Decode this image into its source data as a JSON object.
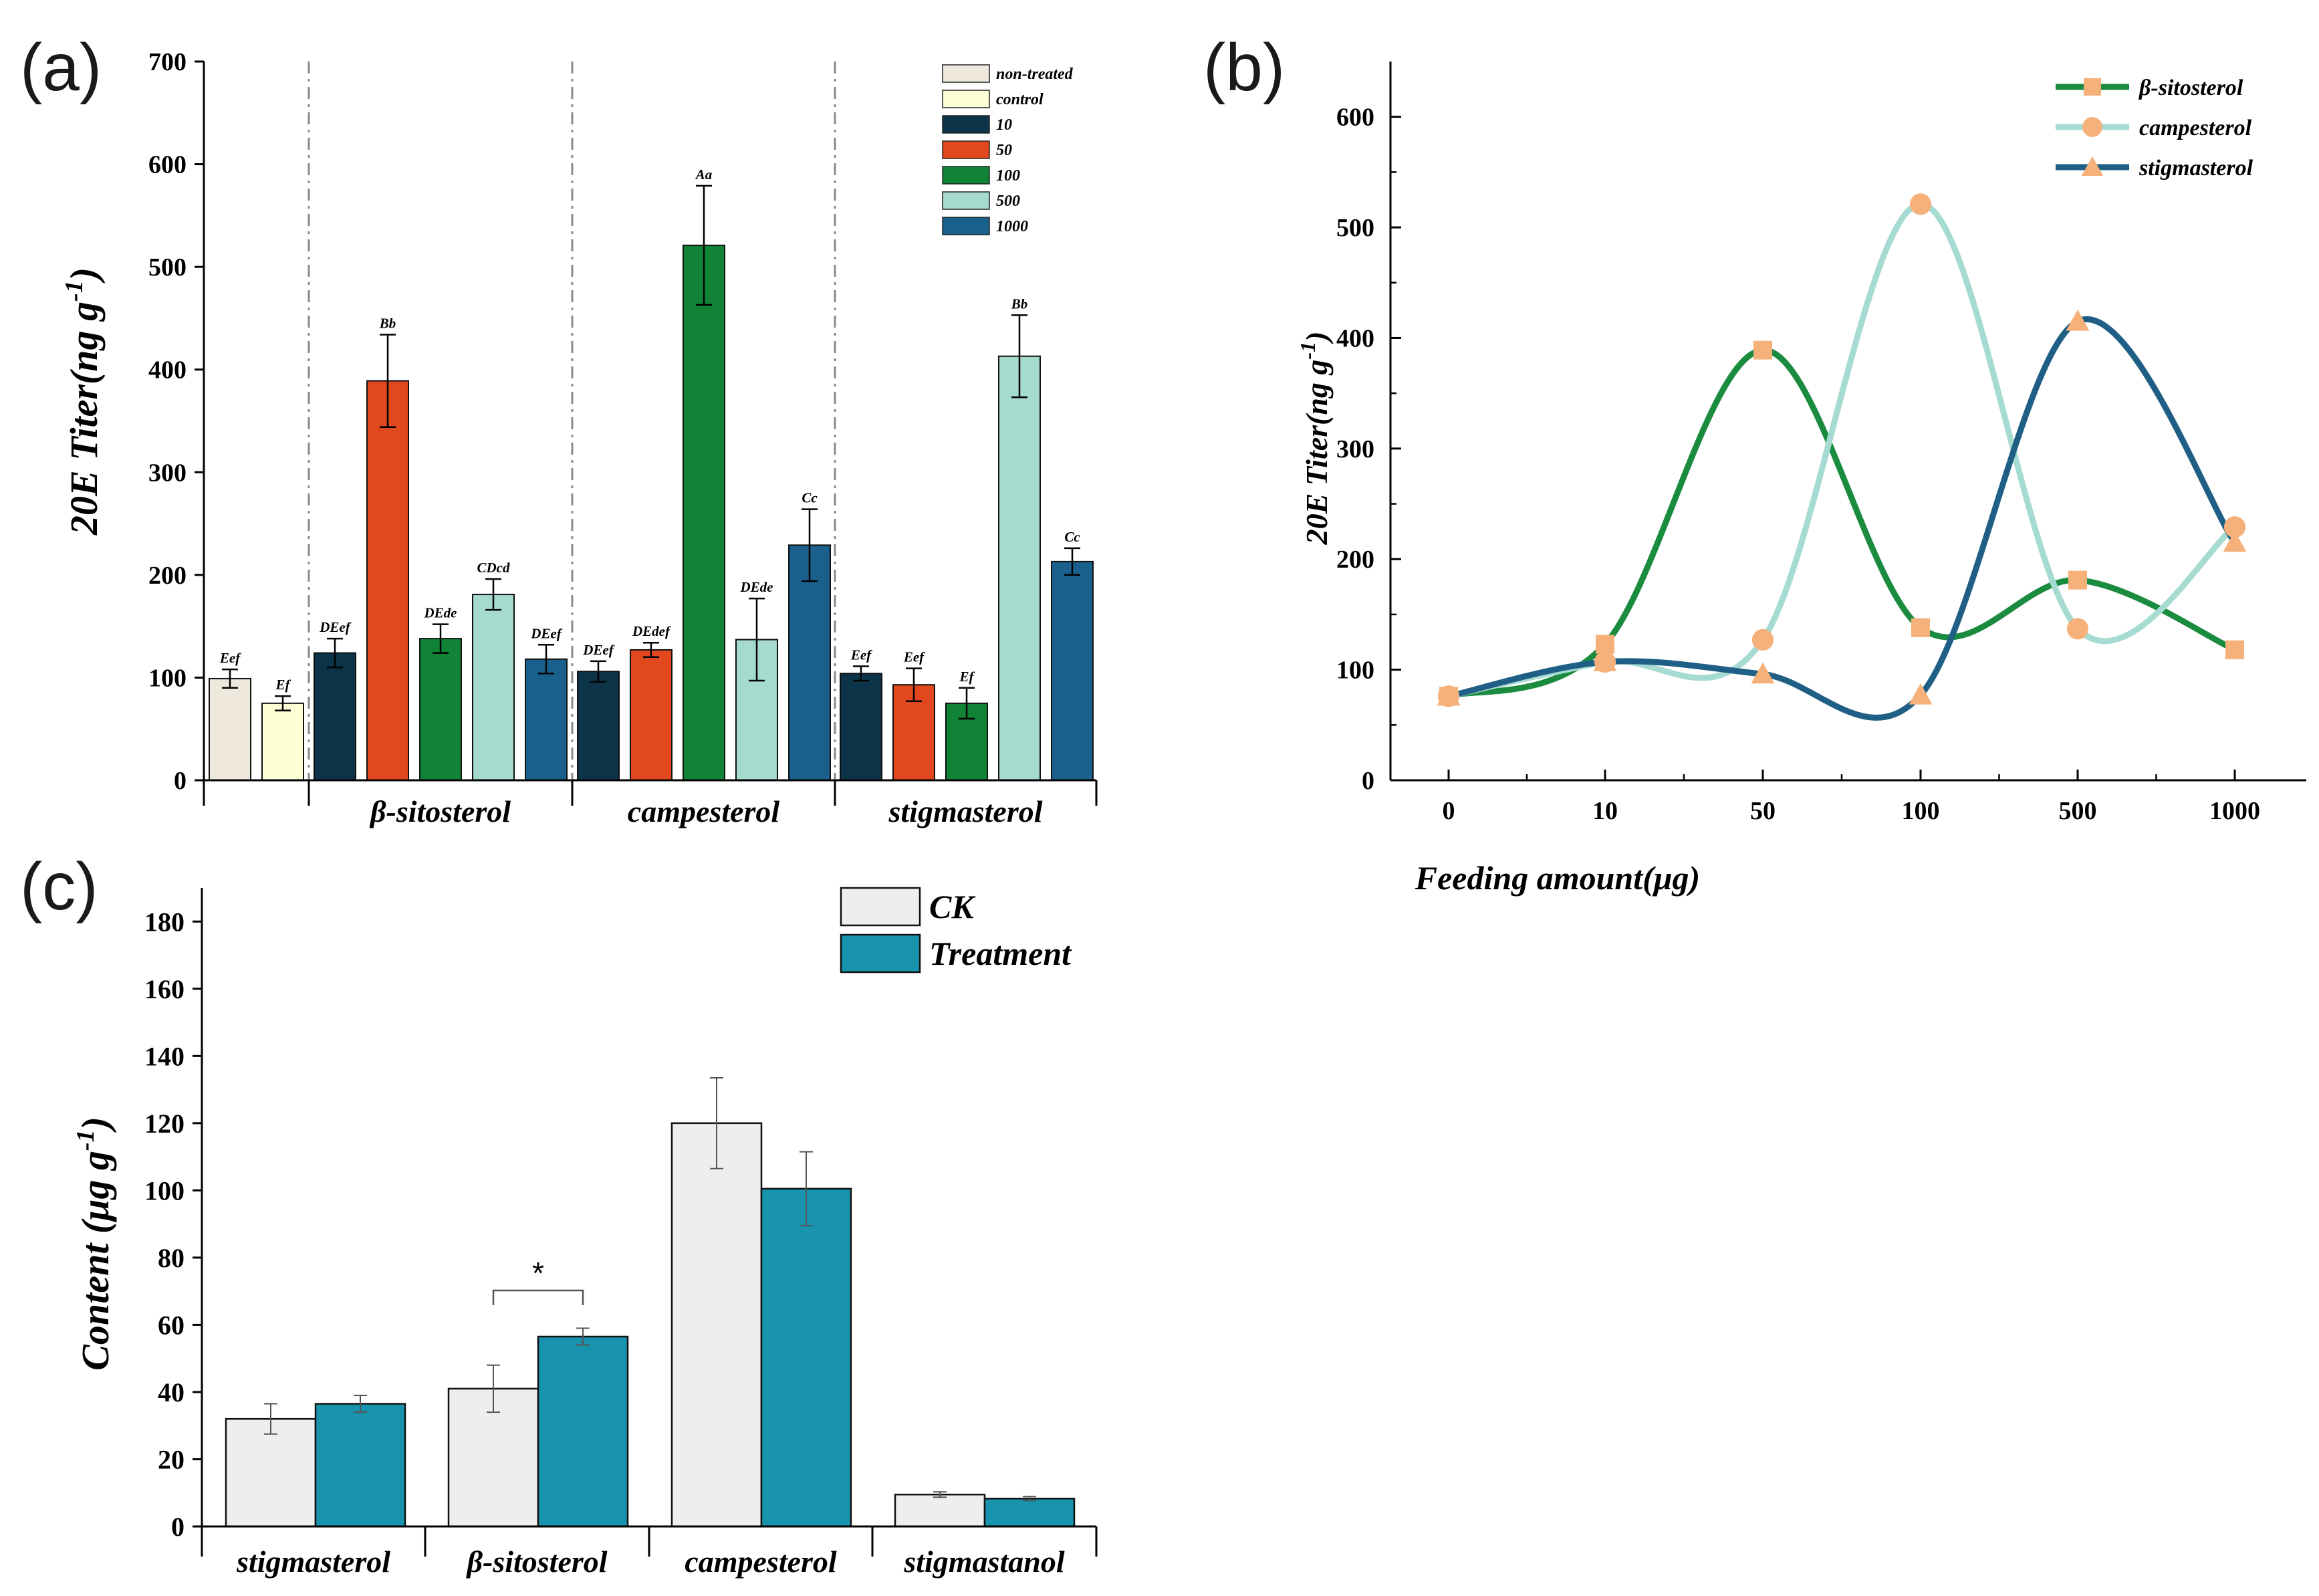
{
  "panels": {
    "a": "(a)",
    "b": "(b)",
    "c": "(c)"
  },
  "chart_data": [
    {
      "type": "bar",
      "id": "a",
      "ylabel": "20E Titer(ng g",
      "ylabel_sup": "-1",
      "ylabel_close": ")",
      "ylim": [
        0,
        700
      ],
      "yticks": [
        0,
        100,
        200,
        300,
        400,
        500,
        600,
        700
      ],
      "legend": [
        {
          "label": "non-treated",
          "color": "#efe8dc"
        },
        {
          "label": "control",
          "color": "#fdfdd6"
        },
        {
          "label": "10",
          "color": "#0c3449"
        },
        {
          "label": "50",
          "color": "#e2481d"
        },
        {
          "label": "100",
          "color": "#118337"
        },
        {
          "label": "500",
          "color": "#a5dacf"
        },
        {
          "label": "1000",
          "color": "#19608c"
        }
      ],
      "groups": [
        {
          "label": "",
          "bars": [
            {
              "series": "non-treated",
              "value": 99,
              "err": 9,
              "sig": "Eef"
            },
            {
              "series": "control",
              "value": 75,
              "err": 7,
              "sig": "Ef"
            }
          ]
        },
        {
          "label": "β-sitosterol",
          "bars": [
            {
              "series": "10",
              "value": 124,
              "err": 14,
              "sig": "DEef"
            },
            {
              "series": "50",
              "value": 389,
              "err": 45,
              "sig": "Bb"
            },
            {
              "series": "100",
              "value": 138,
              "err": 14,
              "sig": "DEde"
            },
            {
              "series": "500",
              "value": 181,
              "err": 15,
              "sig": "CDcd"
            },
            {
              "series": "1000",
              "value": 118,
              "err": 14,
              "sig": "DEef"
            }
          ]
        },
        {
          "label": "campesterol",
          "bars": [
            {
              "series": "10",
              "value": 106,
              "err": 10,
              "sig": "DEef"
            },
            {
              "series": "50",
              "value": 127,
              "err": 7,
              "sig": "DEdef"
            },
            {
              "series": "100",
              "value": 521,
              "err": 58,
              "sig": "Aa"
            },
            {
              "series": "500",
              "value": 137,
              "err": 40,
              "sig": "DEde"
            },
            {
              "series": "1000",
              "value": 229,
              "err": 35,
              "sig": "Cc"
            }
          ]
        },
        {
          "label": "stigmasterol",
          "bars": [
            {
              "series": "10",
              "value": 104,
              "err": 7,
              "sig": "Eef"
            },
            {
              "series": "50",
              "value": 93,
              "err": 16,
              "sig": "Eef"
            },
            {
              "series": "100",
              "value": 75,
              "err": 15,
              "sig": "Ef"
            },
            {
              "series": "500",
              "value": 413,
              "err": 40,
              "sig": "Bb"
            },
            {
              "series": "1000",
              "value": 213,
              "err": 13,
              "sig": "Cc"
            }
          ]
        }
      ]
    },
    {
      "type": "line",
      "id": "b",
      "xlabel": "Feeding amount(μg)",
      "ylabel": "20E Titer(ng g",
      "ylabel_sup": "-1",
      "ylabel_close": ")",
      "x": [
        "0",
        "10",
        "50",
        "100",
        "500",
        "1000"
      ],
      "ylim": [
        0,
        650
      ],
      "yticks": [
        0,
        100,
        200,
        300,
        400,
        500,
        600
      ],
      "marker_color": "#f6b07a",
      "series": [
        {
          "name": "β-sitosterol",
          "color": "#1a8b3f",
          "marker": "square",
          "values": [
            76,
            123,
            389,
            138,
            181,
            118
          ]
        },
        {
          "name": "campesterol",
          "color": "#a6dbd1",
          "marker": "circle",
          "values": [
            76,
            107,
            127,
            521,
            137,
            229
          ]
        },
        {
          "name": "stigmasterol",
          "color": "#1f5f85",
          "marker": "triangle",
          "values": [
            76,
            107,
            96,
            77,
            415,
            215
          ]
        }
      ]
    },
    {
      "type": "bar",
      "id": "c",
      "ylabel": "Content (μg g",
      "ylabel_sup": "-1",
      "ylabel_close": ")",
      "ylim": [
        0,
        190
      ],
      "yticks": [
        0,
        20,
        40,
        60,
        80,
        100,
        120,
        140,
        160,
        180
      ],
      "categories": [
        "stigmasterol",
        "β-sitosterol",
        "campesterol",
        "stigmastanol"
      ],
      "series": [
        {
          "name": "CK",
          "color": "#eeeeee",
          "values": [
            32,
            41,
            120,
            9.5
          ],
          "errors": [
            4.5,
            7,
            13.5,
            0.8
          ]
        },
        {
          "name": "Treatment",
          "color": "#1893ad",
          "values": [
            36.5,
            56.5,
            100.5,
            8.3
          ],
          "errors": [
            2.5,
            2.5,
            11,
            0.6
          ]
        }
      ],
      "annotation": {
        "category": "β-sitosterol",
        "text": "*"
      }
    }
  ]
}
